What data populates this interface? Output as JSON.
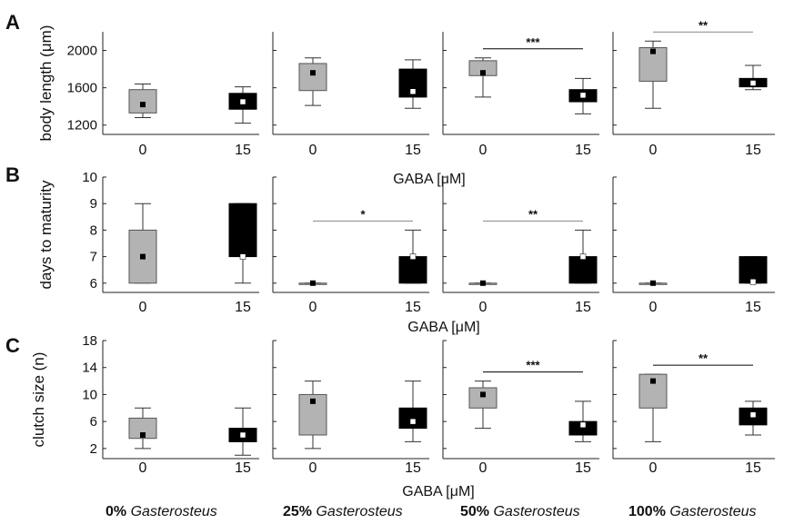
{
  "figure": {
    "x_label": "GABA [μM]",
    "categories": [
      "0",
      "15"
    ],
    "colors": {
      "control": "#b3b3b3",
      "treatment": "#000000",
      "axis": "#222222",
      "text": "#111111",
      "sig_line": "#888888",
      "mean_dark": "#000000",
      "mean_light": "#ffffff"
    },
    "footer": [
      {
        "pct": "0%",
        "genus": "Gasterosteus"
      },
      {
        "pct": "25%",
        "genus": "Gasterosteus"
      },
      {
        "pct": "50%",
        "genus": "Gasterosteus"
      },
      {
        "pct": "100%",
        "genus": "Gasterosteus"
      }
    ]
  },
  "chart_data": [
    {
      "type": "box",
      "panel": "A",
      "ylabel": "body length (μm)",
      "yticks": [
        1200,
        1600,
        2000
      ],
      "ylim": [
        1100,
        2200
      ],
      "xlabel": "GABA [μM]",
      "subplots": [
        {
          "group": "0% Gasterosteus",
          "boxes": [
            {
              "category": "0",
              "min": 1280,
              "q1": 1330,
              "q3": 1580,
              "max": 1640,
              "mean": 1420
            },
            {
              "category": "15",
              "min": 1220,
              "q1": 1370,
              "q3": 1540,
              "max": 1610,
              "mean": 1450
            }
          ],
          "significance": ""
        },
        {
          "group": "25% Gasterosteus",
          "boxes": [
            {
              "category": "0",
              "min": 1410,
              "q1": 1570,
              "q3": 1860,
              "max": 1920,
              "mean": 1760
            },
            {
              "category": "15",
              "min": 1380,
              "q1": 1500,
              "q3": 1800,
              "max": 1900,
              "mean": 1560
            }
          ],
          "significance": ""
        },
        {
          "group": "50% Gasterosteus",
          "boxes": [
            {
              "category": "0",
              "min": 1500,
              "q1": 1730,
              "q3": 1890,
              "max": 1920,
              "mean": 1760
            },
            {
              "category": "15",
              "min": 1320,
              "q1": 1450,
              "q3": 1580,
              "max": 1700,
              "mean": 1520
            }
          ],
          "significance": "***"
        },
        {
          "group": "100% Gasterosteus",
          "boxes": [
            {
              "category": "0",
              "min": 1380,
              "q1": 1670,
              "q3": 2030,
              "max": 2100,
              "mean": 1990
            },
            {
              "category": "15",
              "min": 1580,
              "q1": 1610,
              "q3": 1700,
              "max": 1840,
              "mean": 1650
            }
          ],
          "significance": "**"
        }
      ]
    },
    {
      "type": "box",
      "panel": "B",
      "ylabel": "days to maturity",
      "yticks": [
        6,
        7,
        8,
        9,
        10
      ],
      "ylim": [
        5.65,
        10
      ],
      "xlabel": "GABA [μM]",
      "subplots": [
        {
          "group": "0% Gasterosteus",
          "boxes": [
            {
              "category": "0",
              "min": 6,
              "q1": 6,
              "q3": 8,
              "max": 9,
              "mean": 7
            },
            {
              "category": "15",
              "min": 6,
              "q1": 7,
              "q3": 9,
              "max": 9,
              "mean": 7
            }
          ],
          "significance": ""
        },
        {
          "group": "25% Gasterosteus",
          "boxes": [
            {
              "category": "0",
              "min": 6,
              "q1": 6,
              "q3": 6,
              "max": 6,
              "mean": 6
            },
            {
              "category": "15",
              "min": 6,
              "q1": 6,
              "q3": 7,
              "max": 8,
              "mean": 7
            }
          ],
          "significance": "*"
        },
        {
          "group": "50% Gasterosteus",
          "boxes": [
            {
              "category": "0",
              "min": 6,
              "q1": 6,
              "q3": 6,
              "max": 6,
              "mean": 6
            },
            {
              "category": "15",
              "min": 6,
              "q1": 6,
              "q3": 7,
              "max": 8,
              "mean": 7
            }
          ],
          "significance": "**"
        },
        {
          "group": "100% Gasterosteus",
          "boxes": [
            {
              "category": "0",
              "min": 6,
              "q1": 6,
              "q3": 6,
              "max": 6,
              "mean": 6
            },
            {
              "category": "15",
              "min": 6,
              "q1": 6,
              "q3": 7,
              "max": 7,
              "mean": 6.05
            }
          ],
          "significance": ""
        }
      ]
    },
    {
      "type": "box",
      "panel": "C",
      "ylabel": "clutch size (n)",
      "yticks": [
        2,
        6,
        10,
        14,
        18
      ],
      "ylim": [
        0.5,
        18
      ],
      "xlabel": "GABA [μM]",
      "subplots": [
        {
          "group": "0% Gasterosteus",
          "boxes": [
            {
              "category": "0",
              "min": 2,
              "q1": 3.5,
              "q3": 6.5,
              "max": 8,
              "mean": 4
            },
            {
              "category": "15",
              "min": 1,
              "q1": 3,
              "q3": 5,
              "max": 8,
              "mean": 4
            }
          ],
          "significance": ""
        },
        {
          "group": "25% Gasterosteus",
          "boxes": [
            {
              "category": "0",
              "min": 2,
              "q1": 4,
              "q3": 10,
              "max": 12,
              "mean": 9
            },
            {
              "category": "15",
              "min": 3,
              "q1": 5,
              "q3": 8,
              "max": 12,
              "mean": 6
            }
          ],
          "significance": ""
        },
        {
          "group": "50% Gasterosteus",
          "boxes": [
            {
              "category": "0",
              "min": 5,
              "q1": 8,
              "q3": 11,
              "max": 12,
              "mean": 10
            },
            {
              "category": "15",
              "min": 3,
              "q1": 4,
              "q3": 6,
              "max": 9,
              "mean": 5.5
            }
          ],
          "significance": "***"
        },
        {
          "group": "100% Gasterosteus",
          "boxes": [
            {
              "category": "0",
              "min": 3,
              "q1": 8,
              "q3": 13,
              "max": 13,
              "mean": 12
            },
            {
              "category": "15",
              "min": 4,
              "q1": 5.5,
              "q3": 8,
              "max": 9,
              "mean": 7
            }
          ],
          "significance": "**"
        }
      ]
    }
  ]
}
